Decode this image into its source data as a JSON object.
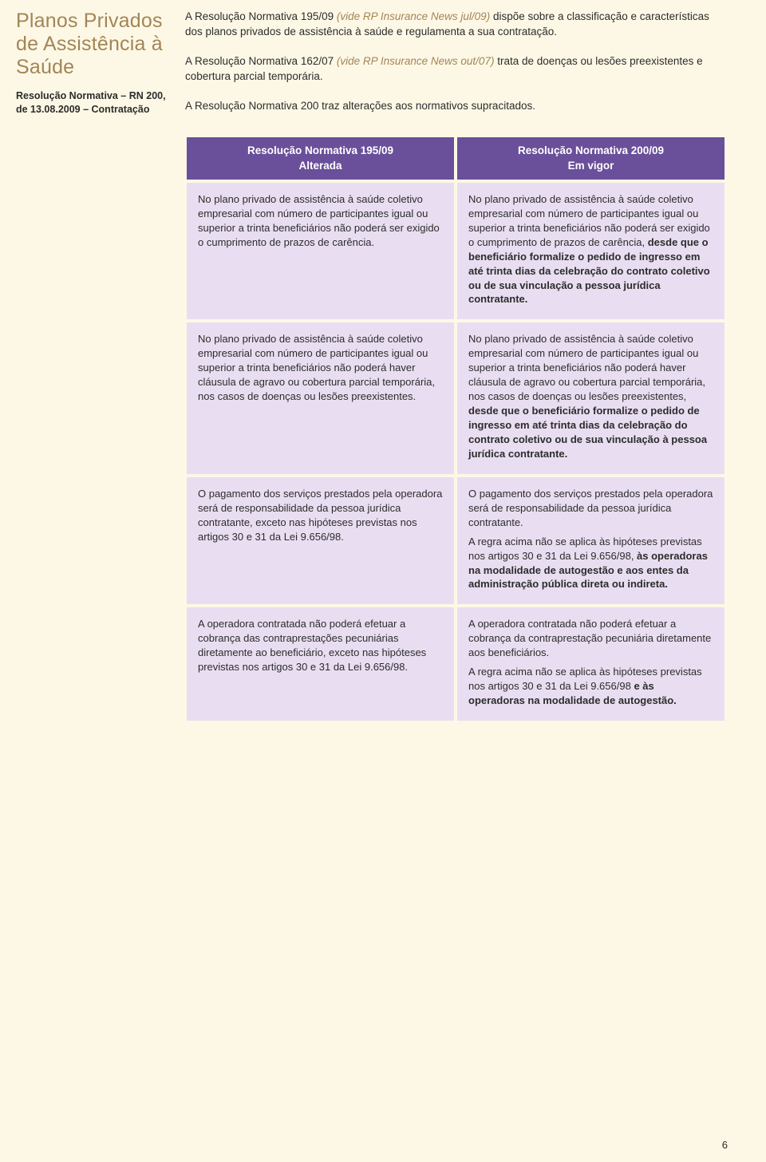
{
  "colors": {
    "page_bg": "#fdf8e6",
    "title_color": "#a38556",
    "accent_italic": "#a38556",
    "th_bg": "#6a4f9a",
    "th_fg": "#ffffff",
    "td_bg": "#e9def1",
    "body_text": "#2c2c2c"
  },
  "page_title": "Planos Privados de Assistência à Saúde",
  "resolution_label": "Resolução Normativa – RN 200, de 13.08.2009 – Contratação",
  "intro": {
    "p1_pre": "A Resolução Normativa 195/09 ",
    "p1_italic": "(vide RP Insurance News jul/09)",
    "p1_post": " dispõe sobre a classificação e características dos planos privados de assistência à saúde e regulamenta a sua contratação.",
    "p2_pre": "A Resolução Normativa 162/07 ",
    "p2_italic": "(vide RP Insurance News out/07)",
    "p2_post": " trata de doenças ou lesões preexistentes e cobertura parcial temporária.",
    "p3": "A Resolução Normativa 200 traz alterações aos normativos supracitados."
  },
  "table": {
    "header_left_line1": "Resolução Normativa 195/09",
    "header_left_line2": "Alterada",
    "header_right_line1": "Resolução Normativa 200/09",
    "header_right_line2": "Em vigor",
    "rows": [
      {
        "left": "No plano privado de assistência à saúde coletivo empresarial com número de participantes igual ou superior a trinta beneficiários não poderá ser exigido o cumprimento de prazos de carência.",
        "right_plain": "No plano privado de assistência à saúde coletivo empresarial com número de participantes igual ou superior a trinta beneficiários não poderá ser exigido o cumprimento de prazos de carência, ",
        "right_bold": "desde que o beneficiário formalize o pedido de ingresso em até trinta dias da celebração do contrato coletivo ou de sua vinculação a pessoa jurídica contratante."
      },
      {
        "left": "No plano privado de assistência à saúde coletivo empresarial com número de participantes igual ou superior a trinta beneficiários não poderá haver cláusula de agravo ou cobertura parcial temporária, nos casos de doenças ou lesões preexistentes.",
        "right_plain": "No plano privado de assistência à saúde coletivo empresarial com número de participantes igual ou superior a trinta beneficiários não poderá haver cláusula de agravo ou cobertura parcial temporária, nos casos de doenças ou lesões preexistentes, ",
        "right_bold": "desde que o beneficiário formalize o pedido de ingresso em até trinta dias da celebração do contrato coletivo ou de sua vinculação à pessoa jurídica contratante."
      },
      {
        "left": "O pagamento dos serviços prestados pela operadora será de responsabilidade da pessoa jurídica contratante, exceto nas hipóteses previstas nos artigos 30 e 31 da Lei 9.656/98.",
        "right_p1": "O pagamento dos serviços prestados pela operadora será de responsabilidade da pessoa jurídica contratante.",
        "right_p2_plain": "A regra acima não se aplica às hipóteses previstas nos artigos 30 e 31 da Lei 9.656/98, ",
        "right_p2_bold": "às operadoras na modalidade de autogestão e aos entes da administração pública direta ou indireta."
      },
      {
        "left": "A operadora contratada não poderá efetuar a cobrança das contraprestações pecuniárias diretamente ao beneficiário, exceto nas hipóteses previstas nos artigos 30 e 31 da Lei 9.656/98.",
        "right_p1": "A operadora contratada não poderá efetuar a cobrança da contraprestação pecuniária diretamente aos beneficiários.",
        "right_p2_plain": "A regra acima não se aplica às hipóteses previstas nos artigos 30 e 31 da Lei 9.656/98 ",
        "right_p2_bold": "e às operadoras na modalidade de autogestão."
      }
    ]
  },
  "page_number": "6"
}
